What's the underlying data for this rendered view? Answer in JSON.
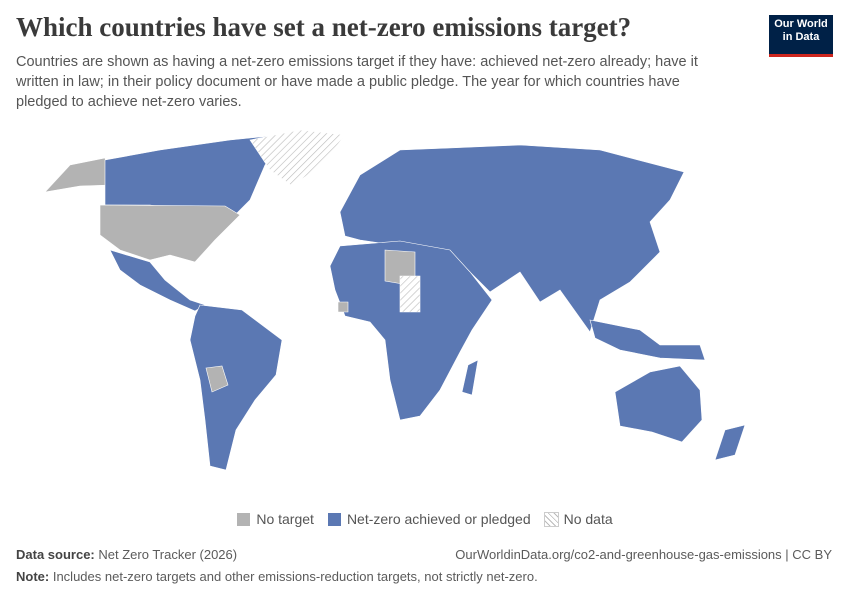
{
  "header": {
    "title": "Which countries have set a net-zero emissions target?",
    "subtitle": "Countries are shown as having a net-zero emissions target if they have: achieved net-zero already; have it written in law; in their policy document or have made a public pledge. The year for which countries have pledged to achieve net-zero varies."
  },
  "logo": {
    "line1": "Our World",
    "line2": "in Data"
  },
  "legend": {
    "items": [
      {
        "label": "No target",
        "color": "#b3b3b3"
      },
      {
        "label": "Net-zero achieved or pledged",
        "color": "#5b78b3"
      },
      {
        "label": "No data",
        "pattern": "hatch"
      }
    ]
  },
  "footer": {
    "source_label": "Data source:",
    "source": "Net Zero Tracker (2026)",
    "url": "OurWorldinData.org/co2-and-greenhouse-gas-emissions | CC BY",
    "note_label": "Note:",
    "note": "Includes net-zero targets and other emissions-reduction targets, not strictly net-zero."
  }
}
